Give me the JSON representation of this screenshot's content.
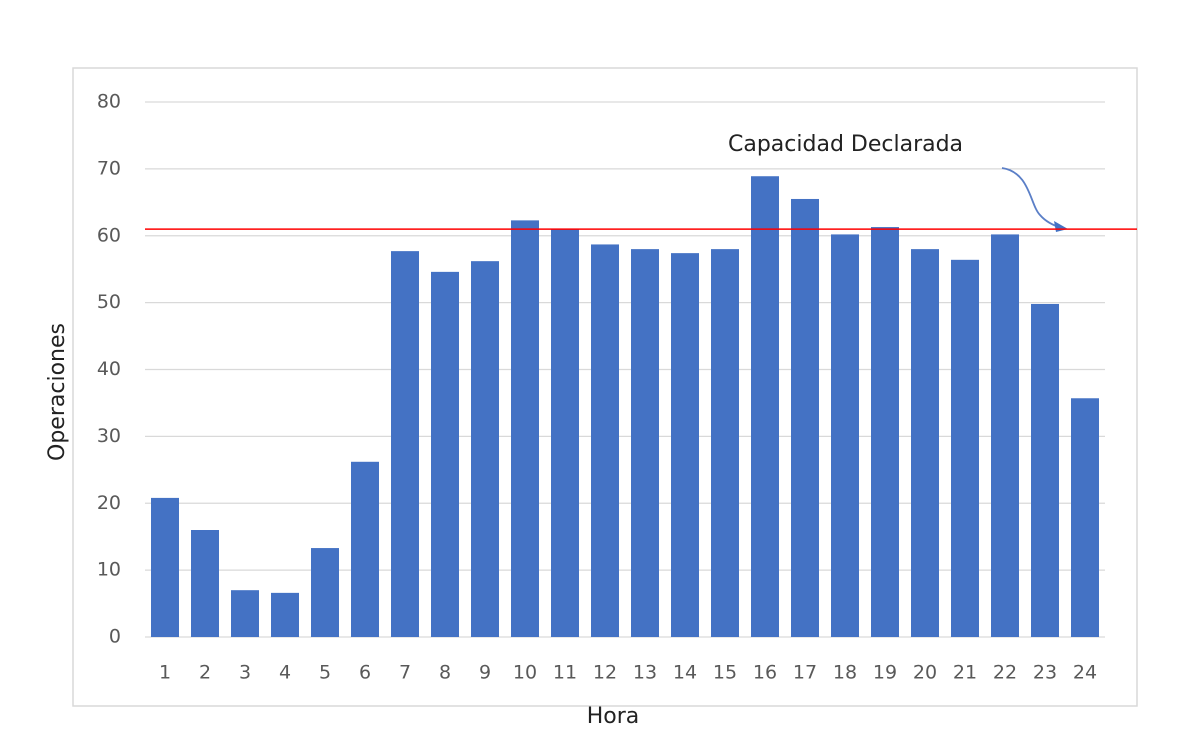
{
  "chart_data": {
    "type": "bar",
    "x_label": "Hora",
    "y_label": "Operaciones",
    "categories": [
      "1",
      "2",
      "3",
      "4",
      "5",
      "6",
      "7",
      "8",
      "9",
      "10",
      "11",
      "12",
      "13",
      "14",
      "15",
      "16",
      "17",
      "18",
      "19",
      "20",
      "21",
      "22",
      "23",
      "24"
    ],
    "values": [
      20.8,
      16.0,
      7.0,
      6.6,
      13.3,
      26.2,
      57.7,
      54.6,
      56.2,
      62.3,
      61.0,
      58.7,
      58.0,
      57.4,
      58.0,
      68.9,
      65.5,
      60.2,
      61.3,
      58.0,
      56.4,
      60.2,
      49.8,
      35.7
    ],
    "color": "#4472c4",
    "ylim": [
      0,
      80
    ],
    "yticks": [
      0,
      10,
      20,
      30,
      40,
      50,
      60,
      70,
      80
    ],
    "grid": true,
    "reference_line": {
      "label": "Capacidad Declarada",
      "value": 61,
      "color": "#ff0000"
    }
  }
}
